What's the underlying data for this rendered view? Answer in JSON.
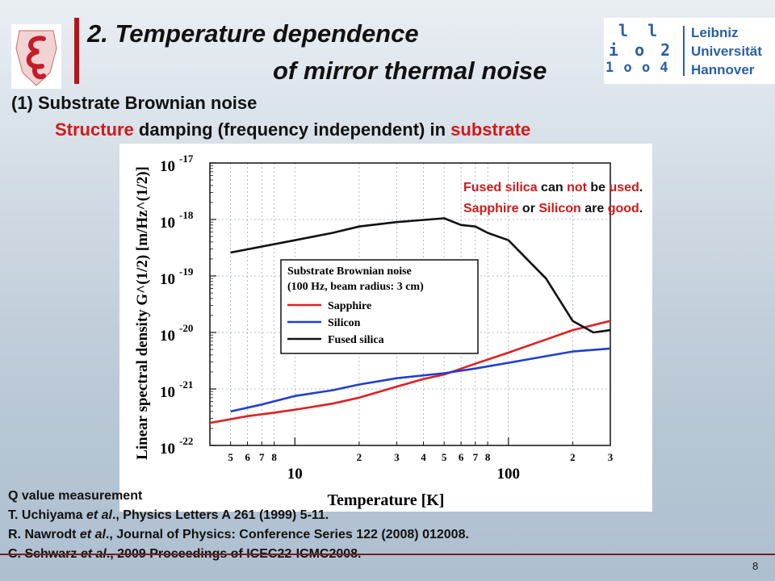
{
  "slide": {
    "title_line1": "2. Temperature dependence",
    "title_line2": "of mirror thermal noise",
    "subtitle_num": "(1) Substrate Brownian noise",
    "subtitle_desc_red1": "Structure",
    "subtitle_desc_mid": " damping (frequency independent) in ",
    "subtitle_desc_red2": "substrate",
    "note": {
      "l1_red1": "Fused silica",
      "l1_a": " can ",
      "l1_red2": "not",
      "l1_b": " be ",
      "l1_red3": "used",
      "l1_c": ".",
      "l2_red1": "Sapphire",
      "l2_a": " or ",
      "l2_red2": "Silicon",
      "l2_b": " are ",
      "l2_red3": "good",
      "l2_c": "."
    },
    "refs": {
      "heading": "Q value measurement",
      "r1_author": "T. Uchiyama ",
      "r1_etal": "et al",
      "r1_rest": "., Physics Letters A 261 (1999) 5-11.",
      "r2_author": "R. Nawrodt ",
      "r2_etal": "et al",
      "r2_rest": "., Journal of Physics: Conference Series 122 (2008) 012008.",
      "r3_author": "C. Schwarz ",
      "r3_etal": "et al",
      "r3_rest": "., 2009 Proceedings of ICEC22-ICMC2008."
    },
    "page_number": "8",
    "logo_right": {
      "line1": "Leibniz",
      "line2": "Universität",
      "line3": "Hannover",
      "mark_row1": "l l",
      "mark_row2": "i o 2",
      "mark_row3": "1 o o 4"
    },
    "colors": {
      "accent_red": "#d21919",
      "logo_blue": "#2a5fa5",
      "title_bar": "#b3151b"
    }
  },
  "chart_data": {
    "type": "line",
    "xscale": "log",
    "yscale": "log",
    "xlim": [
      4,
      300
    ],
    "ylim": [
      1e-22,
      1e-17
    ],
    "grid": true,
    "xlabel": "Temperature [K]",
    "ylabel": "Linear spectral density G^(1/2) [m/Hz^(1/2)]",
    "x_major_ticks": [
      {
        "v": 10,
        "label": "10"
      },
      {
        "v": 100,
        "label": "100"
      }
    ],
    "x_minor_ticks": [
      {
        "v": 5,
        "label": "5"
      },
      {
        "v": 6,
        "label": "6"
      },
      {
        "v": 7,
        "label": "7"
      },
      {
        "v": 8,
        "label": "8"
      },
      {
        "v": 20,
        "label": "2"
      },
      {
        "v": 30,
        "label": "3"
      },
      {
        "v": 40,
        "label": "4"
      },
      {
        "v": 50,
        "label": "5"
      },
      {
        "v": 60,
        "label": "6"
      },
      {
        "v": 70,
        "label": "7"
      },
      {
        "v": 80,
        "label": "8"
      },
      {
        "v": 200,
        "label": "2"
      },
      {
        "v": 300,
        "label": "3"
      }
    ],
    "y_ticks": [
      {
        "exp": -22,
        "label": "10",
        "sup": "-22"
      },
      {
        "exp": -21,
        "label": "10",
        "sup": "-21"
      },
      {
        "exp": -20,
        "label": "10",
        "sup": "-20"
      },
      {
        "exp": -19,
        "label": "10",
        "sup": "-19"
      },
      {
        "exp": -18,
        "label": "10",
        "sup": "-18"
      },
      {
        "exp": -17,
        "label": "10",
        "sup": "-17"
      }
    ],
    "legend_title1": "Substrate Brownian noise",
    "legend_title2": "(100 Hz, beam radius: 3 cm)",
    "legend_position": "center",
    "series": [
      {
        "name": "Sapphire",
        "color": "#e02020",
        "x": [
          4,
          6,
          8,
          10,
          15,
          20,
          30,
          40,
          50,
          70,
          100,
          150,
          200,
          300
        ],
        "y": [
          2.5e-22,
          3.3e-22,
          3.8e-22,
          4.3e-22,
          5.5e-22,
          7e-22,
          1.1e-21,
          1.5e-21,
          1.8e-21,
          2.8e-21,
          4.4e-21,
          7.5e-21,
          1.1e-20,
          1.6e-20
        ]
      },
      {
        "name": "Silicon",
        "color": "#1f3fcf",
        "x": [
          5,
          7,
          10,
          15,
          20,
          30,
          50,
          70,
          100,
          150,
          200,
          300
        ],
        "y": [
          4e-22,
          5.3e-22,
          7.5e-22,
          9.5e-22,
          1.2e-21,
          1.55e-21,
          1.9e-21,
          2.3e-21,
          2.9e-21,
          3.8e-21,
          4.6e-21,
          5.2e-21
        ]
      },
      {
        "name": "Fused silica",
        "color": "#111111",
        "x": [
          5,
          10,
          15,
          20,
          30,
          50,
          60,
          70,
          80,
          100,
          150,
          200,
          250,
          300
        ],
        "y": [
          2.6e-19,
          4.3e-19,
          5.8e-19,
          7.5e-19,
          9e-19,
          1.05e-18,
          8e-19,
          7.5e-19,
          5.8e-19,
          4.3e-19,
          9e-20,
          1.6e-20,
          1e-20,
          1.1e-20
        ]
      }
    ]
  }
}
